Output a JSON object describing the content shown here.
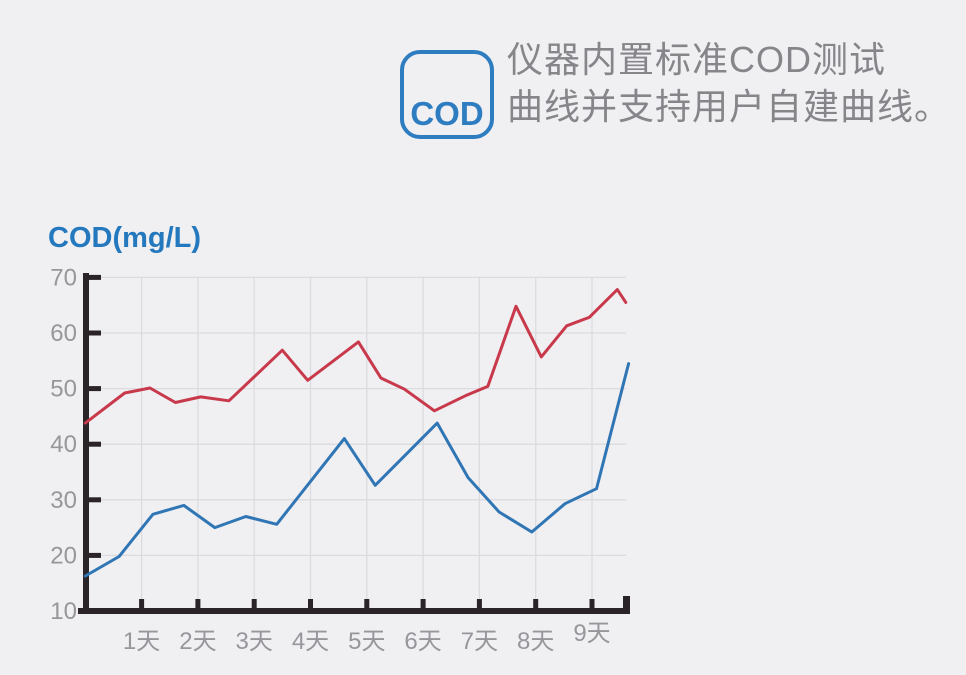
{
  "page": {
    "background": "#f0eff2"
  },
  "header": {
    "badge": {
      "label": "COD",
      "color": "#2e7dc1"
    },
    "text_line1": "仪器内置标准COD测试",
    "text_line2": "曲线并支持用户自建曲线。",
    "text_color": "#86858a"
  },
  "chart_data": {
    "type": "line",
    "title": "COD(mg/L)",
    "title_color": "#2478bd",
    "ylabel": "COD(mg/L)",
    "xlabel": "",
    "ylim": [
      10,
      70
    ],
    "xlim_days": [
      0,
      9.68
    ],
    "y_ticks": [
      10,
      20,
      30,
      40,
      50,
      60,
      70
    ],
    "x_tick_days": [
      1,
      2,
      3,
      4,
      5,
      6,
      7,
      8,
      9
    ],
    "x_tick_labels": [
      "1天",
      "2天",
      "3天",
      "4天",
      "5天",
      "6天",
      "7天",
      "8天",
      "9天"
    ],
    "grid": true,
    "legend_position": "none",
    "colors": {
      "axis": "#2a2327",
      "grid": "#dcdbdf",
      "tick_labels": "#97969b"
    },
    "series": [
      {
        "name": "standard-cod-curve-red",
        "color": "#c8394b",
        "points": [
          [
            0,
            43.8
          ],
          [
            0.7,
            49.2
          ],
          [
            1.15,
            50.1
          ],
          [
            1.6,
            47.5
          ],
          [
            2.05,
            48.5
          ],
          [
            2.55,
            47.8
          ],
          [
            3.5,
            56.9
          ],
          [
            3.95,
            51.5
          ],
          [
            4.85,
            58.4
          ],
          [
            5.25,
            51.9
          ],
          [
            5.67,
            49.9
          ],
          [
            6.2,
            46.0
          ],
          [
            6.75,
            48.7
          ],
          [
            7.15,
            50.4
          ],
          [
            7.65,
            64.8
          ],
          [
            8.1,
            55.7
          ],
          [
            8.55,
            61.3
          ],
          [
            8.95,
            62.8
          ],
          [
            9.45,
            67.8
          ],
          [
            9.6,
            65.5
          ]
        ]
      },
      {
        "name": "user-cod-curve-blue",
        "color": "#3076b5",
        "points": [
          [
            0,
            16.3
          ],
          [
            0.6,
            19.8
          ],
          [
            1.2,
            27.4
          ],
          [
            1.75,
            29.0
          ],
          [
            2.3,
            25.0
          ],
          [
            2.85,
            27.0
          ],
          [
            3.4,
            25.6
          ],
          [
            4.6,
            41.0
          ],
          [
            5.15,
            32.6
          ],
          [
            6.25,
            43.8
          ],
          [
            6.8,
            34.0
          ],
          [
            7.35,
            27.8
          ],
          [
            7.93,
            24.2
          ],
          [
            8.52,
            29.3
          ],
          [
            9.08,
            32.0
          ],
          [
            9.65,
            54.5
          ]
        ]
      }
    ]
  }
}
